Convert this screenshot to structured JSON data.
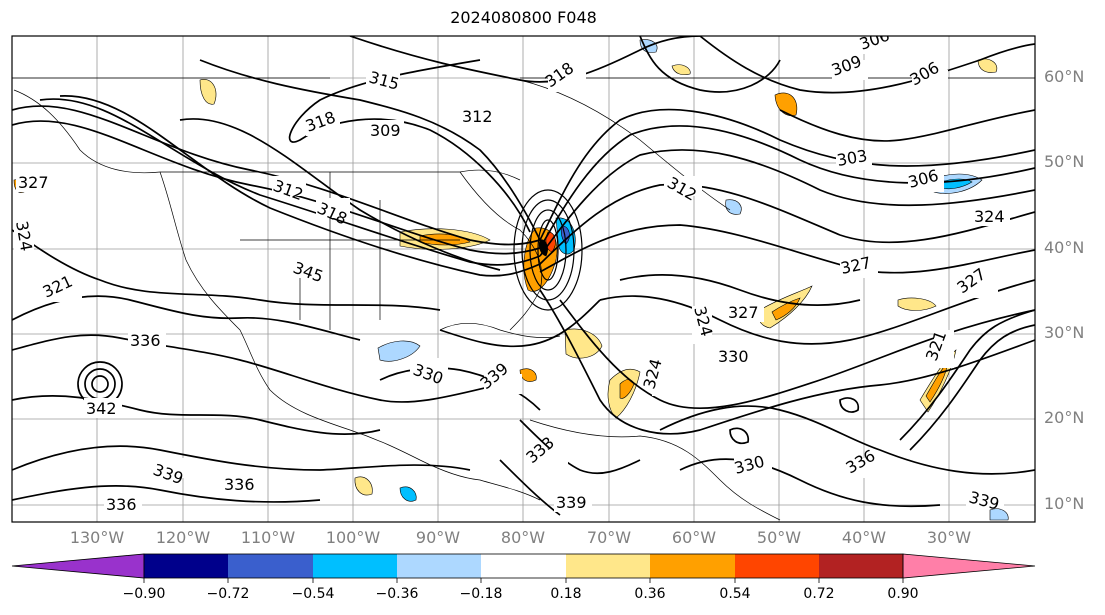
{
  "title": "2024080800 F048",
  "lat_labels": [
    "60°N",
    "50°N",
    "40°N",
    "30°N",
    "20°N",
    "10°N"
  ],
  "lon_labels": [
    "130°W",
    "120°W",
    "110°W",
    "100°W",
    "90°W",
    "80°W",
    "70°W",
    "60°W",
    "50°W",
    "40°W",
    "30°W"
  ],
  "contour_labels": [
    "315",
    "318",
    "309",
    "312",
    "303",
    "306",
    "309",
    "306",
    "324",
    "327",
    "318",
    "312",
    "345",
    "327",
    "324",
    "321",
    "336",
    "342",
    "339",
    "336",
    "339",
    "330",
    "327",
    "330",
    "324",
    "333",
    "336",
    "339",
    "336",
    "324",
    "327",
    "321",
    "330",
    "339",
    "312",
    "306",
    "318"
  ],
  "colorbar": {
    "tick_labels": [
      "−0.90",
      "−0.72",
      "−0.54",
      "−0.36",
      "−0.18",
      "0.18",
      "0.36",
      "0.54",
      "0.72",
      "0.90"
    ],
    "colors": [
      "#9932cc",
      "#00008b",
      "#3a5fcd",
      "#00bfff",
      "#add8ff",
      "#ffffff",
      "#ffe78a",
      "#ffa000",
      "#ff4500",
      "#b22222",
      "#ff7fa8"
    ]
  }
}
